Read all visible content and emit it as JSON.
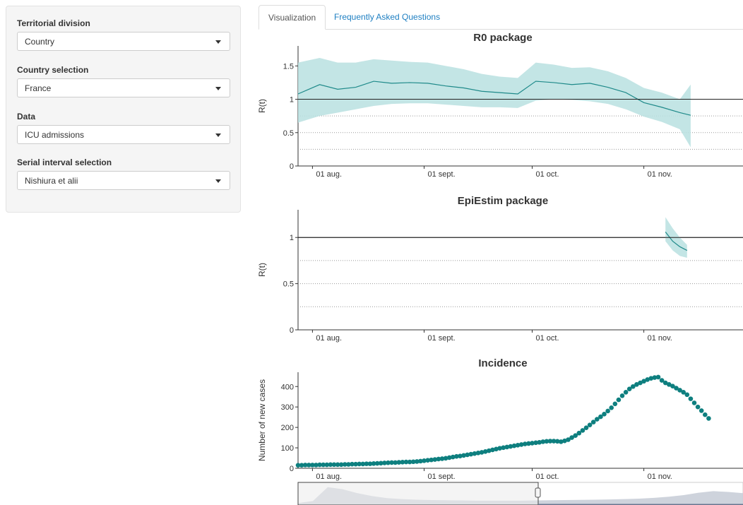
{
  "sidebar": {
    "territorial": {
      "label": "Territorial division",
      "value": "Country"
    },
    "country": {
      "label": "Country selection",
      "value": "France"
    },
    "data": {
      "label": "Data",
      "value": "ICU admissions"
    },
    "serial": {
      "label": "Serial interval selection",
      "value": "Nishiura et alii"
    }
  },
  "tabs": [
    {
      "label": "Visualization",
      "active": true
    },
    {
      "label": "Frequently Asked Questions",
      "active": false
    }
  ],
  "colors": {
    "series": "#1f8a8a",
    "band": "#b9e0e0",
    "points": "#0e7f7f",
    "navigator": "#c9ced8"
  },
  "chart_data": [
    {
      "type": "line",
      "title": "R0 package",
      "ylabel": "R(t)",
      "xticks": [
        "01 aug.",
        "01 sept.",
        "01 oct.",
        "01 nov."
      ],
      "yticks": [
        0,
        0.5,
        1,
        1.5
      ],
      "ylim": [
        0,
        1.8
      ],
      "reference_line": 1,
      "dotted_lines": [
        0.25,
        0.5,
        0.75
      ],
      "x": [
        "2020-07-28",
        "2020-08-03",
        "2020-08-08",
        "2020-08-13",
        "2020-08-18",
        "2020-08-23",
        "2020-08-28",
        "2020-09-02",
        "2020-09-07",
        "2020-09-12",
        "2020-09-17",
        "2020-09-22",
        "2020-09-27",
        "2020-10-02",
        "2020-10-07",
        "2020-10-12",
        "2020-10-17",
        "2020-10-22",
        "2020-10-27",
        "2020-11-01",
        "2020-11-06",
        "2020-11-11",
        "2020-11-14"
      ],
      "y": [
        1.08,
        1.22,
        1.15,
        1.18,
        1.27,
        1.24,
        1.25,
        1.24,
        1.2,
        1.17,
        1.12,
        1.1,
        1.08,
        1.27,
        1.25,
        1.22,
        1.24,
        1.18,
        1.1,
        0.95,
        0.88,
        0.8,
        0.76
      ],
      "lower": [
        0.65,
        0.75,
        0.8,
        0.85,
        0.9,
        0.93,
        0.94,
        0.94,
        0.92,
        0.9,
        0.88,
        0.88,
        0.87,
        0.98,
        1.0,
        0.99,
        0.97,
        0.93,
        0.85,
        0.74,
        0.66,
        0.55,
        0.28
      ],
      "upper": [
        1.55,
        1.62,
        1.55,
        1.55,
        1.6,
        1.58,
        1.56,
        1.55,
        1.5,
        1.45,
        1.38,
        1.34,
        1.32,
        1.55,
        1.52,
        1.47,
        1.48,
        1.42,
        1.32,
        1.17,
        1.1,
        1.0,
        1.22
      ]
    },
    {
      "type": "line",
      "title": "EpiEstim package",
      "ylabel": "R(t)",
      "xticks": [
        "01 aug.",
        "01 sept.",
        "01 oct.",
        "01 nov."
      ],
      "yticks": [
        0,
        0.5,
        1
      ],
      "ylim": [
        0,
        1.3
      ],
      "reference_line": 1,
      "dotted_lines": [
        0.25,
        0.5,
        0.75
      ],
      "x": [
        "2020-11-07",
        "2020-11-09",
        "2020-11-11",
        "2020-11-13"
      ],
      "y": [
        1.06,
        0.96,
        0.9,
        0.86
      ],
      "lower": [
        0.96,
        0.86,
        0.8,
        0.78
      ],
      "upper": [
        1.22,
        1.1,
        1.0,
        0.92
      ]
    },
    {
      "type": "scatter",
      "title": "Incidence",
      "ylabel": "Number of new cases",
      "xticks": [
        "01 aug.",
        "01 sept.",
        "01 oct.",
        "01 nov."
      ],
      "yticks": [
        0,
        100,
        200,
        300,
        400
      ],
      "ylim": [
        0,
        470
      ],
      "x_start": "2020-07-28",
      "values": [
        15,
        15,
        16,
        16,
        16,
        16,
        17,
        17,
        17,
        18,
        18,
        18,
        18,
        19,
        19,
        20,
        20,
        21,
        21,
        22,
        22,
        23,
        24,
        25,
        26,
        27,
        28,
        28,
        29,
        30,
        31,
        31,
        32,
        33,
        35,
        37,
        39,
        41,
        43,
        45,
        47,
        49,
        52,
        55,
        58,
        60,
        63,
        66,
        69,
        72,
        75,
        78,
        82,
        86,
        90,
        94,
        98,
        101,
        104,
        107,
        110,
        113,
        116,
        119,
        121,
        123,
        125,
        127,
        130,
        132,
        133,
        133,
        132,
        130,
        134,
        140,
        150,
        160,
        172,
        185,
        198,
        212,
        226,
        240,
        252,
        265,
        280,
        296,
        315,
        335,
        355,
        372,
        388,
        400,
        410,
        418,
        426,
        434,
        440,
        444,
        446,
        430,
        418,
        410,
        402,
        392,
        382,
        372,
        360,
        340,
        320,
        300,
        282,
        262,
        244
      ]
    }
  ]
}
